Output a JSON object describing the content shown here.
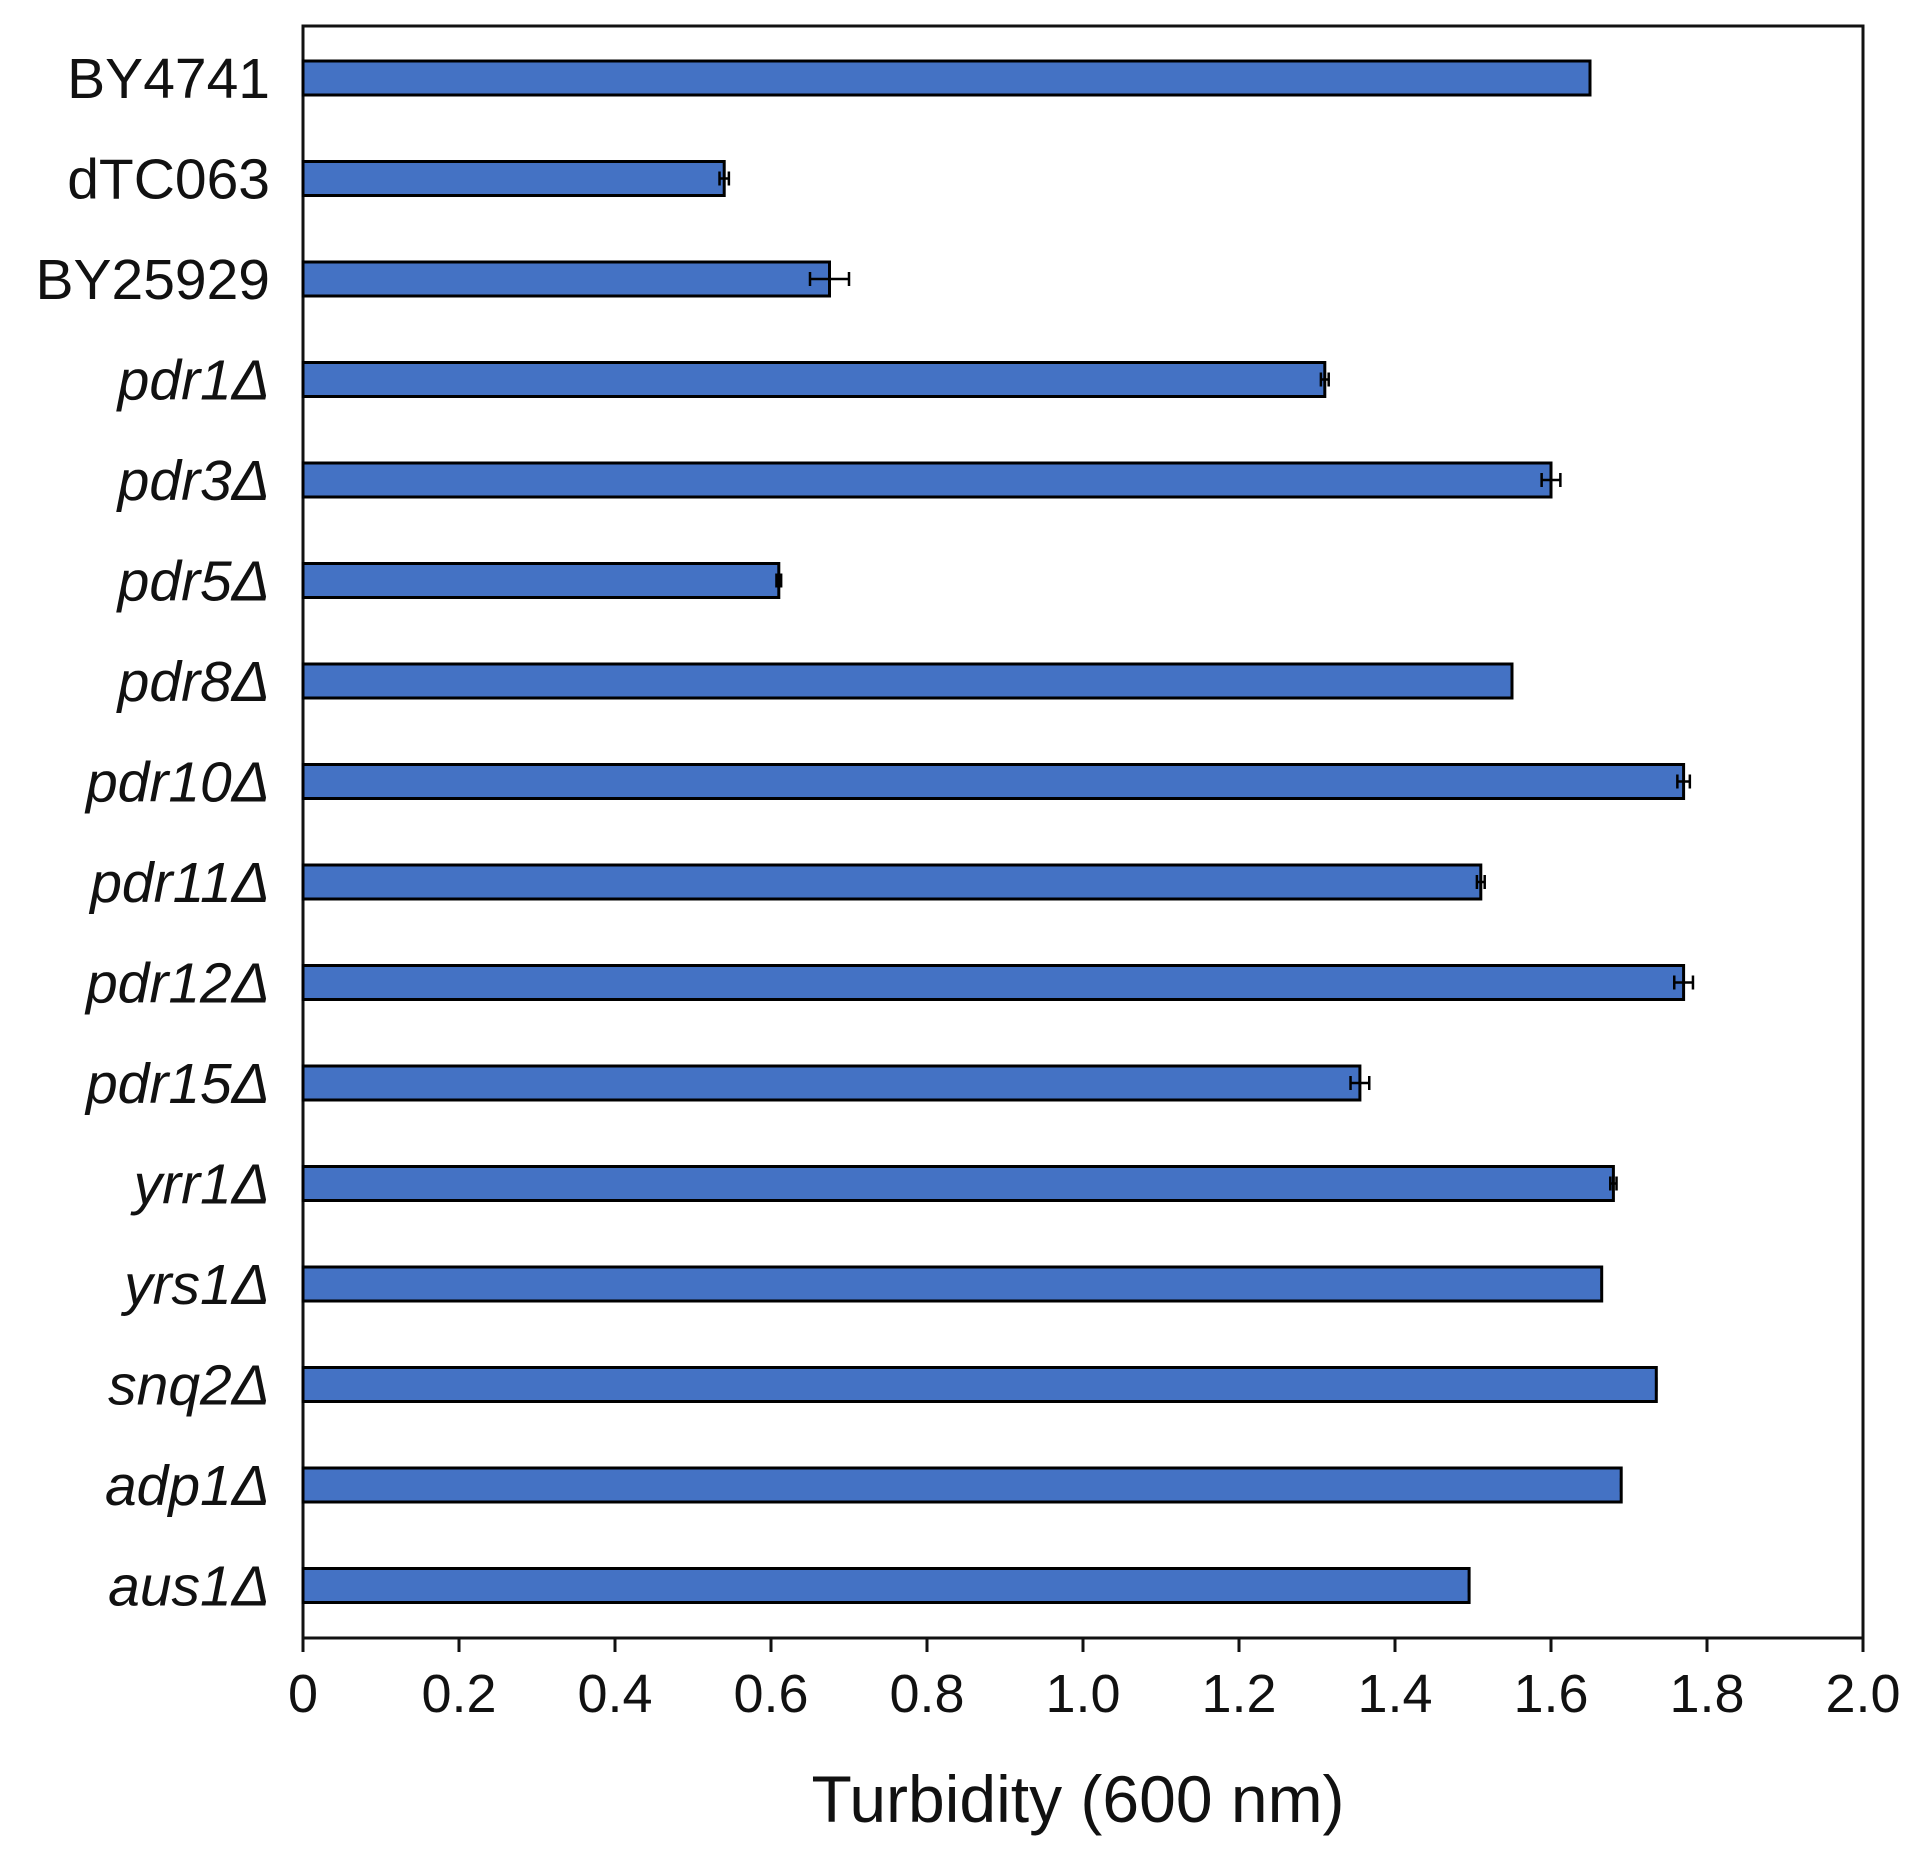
{
  "chart_data": {
    "type": "bar",
    "orientation": "horizontal",
    "categories": [
      {
        "label": "BY4741",
        "italic": false
      },
      {
        "label": "dTC063",
        "italic": false
      },
      {
        "label": "BY25929",
        "italic": false
      },
      {
        "label": "pdr1Δ",
        "italic": true
      },
      {
        "label": "pdr3Δ",
        "italic": true
      },
      {
        "label": "pdr5Δ",
        "italic": true
      },
      {
        "label": "pdr8Δ",
        "italic": true
      },
      {
        "label": "pdr10Δ",
        "italic": true
      },
      {
        "label": "pdr11Δ",
        "italic": true
      },
      {
        "label": "pdr12Δ",
        "italic": true
      },
      {
        "label": "pdr15Δ",
        "italic": true
      },
      {
        "label": "yrr1Δ",
        "italic": true
      },
      {
        "label": "yrs1Δ",
        "italic": true
      },
      {
        "label": "snq2Δ",
        "italic": true
      },
      {
        "label": "adp1Δ",
        "italic": true
      },
      {
        "label": "aus1Δ",
        "italic": true
      }
    ],
    "values": [
      1.65,
      0.54,
      0.675,
      1.31,
      1.6,
      0.61,
      1.55,
      1.77,
      1.51,
      1.77,
      1.355,
      1.68,
      1.665,
      1.735,
      1.69,
      1.495
    ],
    "errors": [
      0.0,
      0.006,
      0.025,
      0.005,
      0.012,
      0.003,
      0.0,
      0.008,
      0.005,
      0.012,
      0.012,
      0.004,
      0.0,
      0.0,
      0.0,
      0.0
    ],
    "xlabel": "Turbidity (600 nm)",
    "ylabel": "",
    "title": "",
    "xlim": [
      0,
      2.0
    ],
    "x_ticks": [
      "0",
      "0.2",
      "0.4",
      "0.6",
      "0.8",
      "1.0",
      "1.2",
      "1.4",
      "1.6",
      "1.8",
      "2.0"
    ],
    "grid": false,
    "legend": "none",
    "bar_color": "#4472C4",
    "bar_edge_color": "#000000"
  }
}
